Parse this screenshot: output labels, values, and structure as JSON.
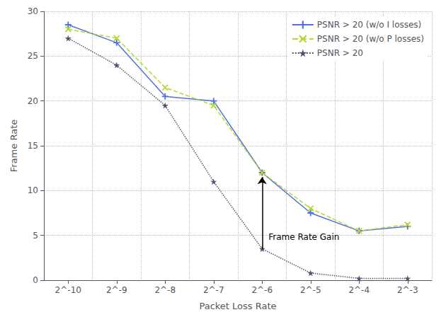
{
  "chart_data": {
    "type": "line",
    "categories": [
      "2^-10",
      "2^-9",
      "2^-8",
      "2^-7",
      "2^-6",
      "2^-5",
      "2^-4",
      "2^-3"
    ],
    "series": [
      {
        "name": "PSNR > 20 (w/o I losses)",
        "values": [
          28.5,
          26.5,
          20.5,
          20.0,
          12.0,
          7.5,
          5.5,
          6.0
        ],
        "marker": "plus",
        "line_style": "solid"
      },
      {
        "name": "PSNR > 20 (w/o P losses)",
        "values": [
          28.0,
          27.0,
          21.5,
          19.5,
          12.0,
          8.0,
          5.5,
          6.2
        ],
        "marker": "x",
        "line_style": "dashed"
      },
      {
        "name": "PSNR > 20",
        "values": [
          27.0,
          24.0,
          19.5,
          11.0,
          3.5,
          0.8,
          0.2,
          0.2
        ],
        "marker": "star",
        "line_style": "dotted"
      }
    ],
    "xlabel": "Packet Loss Rate",
    "ylabel": "Frame Rate",
    "ylim": [
      0,
      30
    ],
    "yticks": [
      0,
      5,
      10,
      15,
      20,
      25,
      30
    ],
    "grid": true,
    "legend": "upper right",
    "annotations": [
      {
        "text": "Frame Rate Gain",
        "x": "2^-6",
        "y": 4.2,
        "arrow_from": 3.5,
        "arrow_to": 11.5
      }
    ]
  }
}
